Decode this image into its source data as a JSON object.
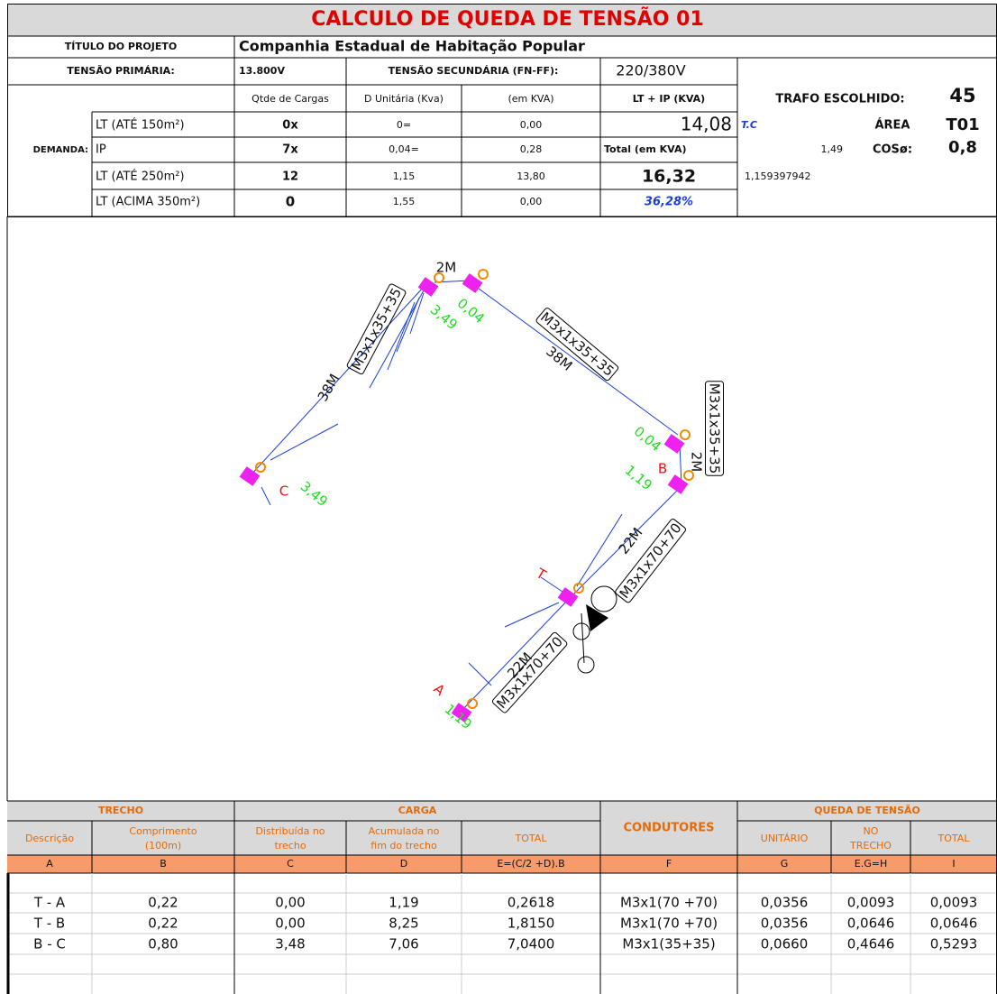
{
  "header": {
    "title": "CALCULO DE QUEDA DE TENSÃO 01"
  },
  "project": {
    "label": "TÍTULO DO PROJETO",
    "value": "Companhia Estadual de Habitação Popular"
  },
  "tension": {
    "primary_label": "TENSÃO PRIMÁRIA:",
    "primary_value": "13.800V",
    "secondary_label": "TENSÃO SECUNDÁRIA (FN-FF):",
    "secondary_value": "220/380V"
  },
  "load_table": {
    "headers": [
      "Qtde de Cargas",
      "D Unitária (Kva)",
      "(em KVA)",
      "LT + IP (KVA)"
    ],
    "demand_label": "DEMANDA:",
    "rows": [
      [
        "LT (ATÉ 150m²)",
        "0x",
        "0=",
        "0,00",
        "14,08"
      ],
      [
        "IP",
        "7x",
        "0,04=",
        "0,28",
        "Total (em KVA)"
      ],
      [
        "LT (ATÉ 250m²)",
        "12",
        "1,15",
        "13,80",
        "16,32"
      ],
      [
        "LT (ACIMA 350m²)",
        "0",
        "1,55",
        "0,00",
        "36,28%"
      ]
    ]
  },
  "transformer": {
    "chosen_label": "TRAFO ESCOLHIDO:",
    "chosen_value": "45",
    "tc": "T.C",
    "area_label": "ÁREA",
    "area_value": "T01",
    "power": "1,49",
    "cos_label": "COSø:",
    "cos_value": "0,8",
    "factor": "1,159397942"
  },
  "diagram": {
    "labels": [
      "2M",
      "0,04",
      "3,49",
      "M3x1x35+35",
      "38M",
      "M3x1x35+35",
      "38M",
      "M3x1x35+35",
      "0,04",
      "2M",
      "1,19",
      "B",
      "C",
      "3,49",
      "22M",
      "M3x1x70+70",
      "T",
      "22M",
      "M3x1x70+70",
      "A",
      "1,19"
    ]
  },
  "sections": {
    "groups": [
      "TRECHO",
      "CARGA",
      "CONDUTORES",
      "QUEDA DE TENSÃO"
    ],
    "subheaders": [
      [
        "Descrição"
      ],
      [
        "Comprimento",
        "(100m)"
      ],
      [
        "Distribuída no",
        "trecho"
      ],
      [
        "Acumulada no",
        "fim do trecho"
      ],
      [
        "TOTAL"
      ],
      [
        "UNITÁRIO"
      ],
      [
        "NO",
        "TRECHO"
      ],
      [
        "TOTAL"
      ]
    ],
    "letters": [
      "A",
      "B",
      "C",
      "D",
      "E=(C/2 +D).B",
      "F",
      "G",
      "E.G=H",
      "I"
    ],
    "rows": [
      [
        "T - A",
        "0,22",
        "0,00",
        "1,19",
        "0,2618",
        "M3x1(70 +70)",
        "0,0356",
        "0,0093",
        "0,0093"
      ],
      [
        "T - B",
        "0,22",
        "0,00",
        "8,25",
        "1,8150",
        "M3x1(70 +70)",
        "0,0356",
        "0,0646",
        "0,0646"
      ],
      [
        "B - C",
        "0,80",
        "3,48",
        "7,06",
        "7,0400",
        "M3x1(35+35)",
        "0,0660",
        "0,4646",
        "0,5293"
      ]
    ]
  }
}
